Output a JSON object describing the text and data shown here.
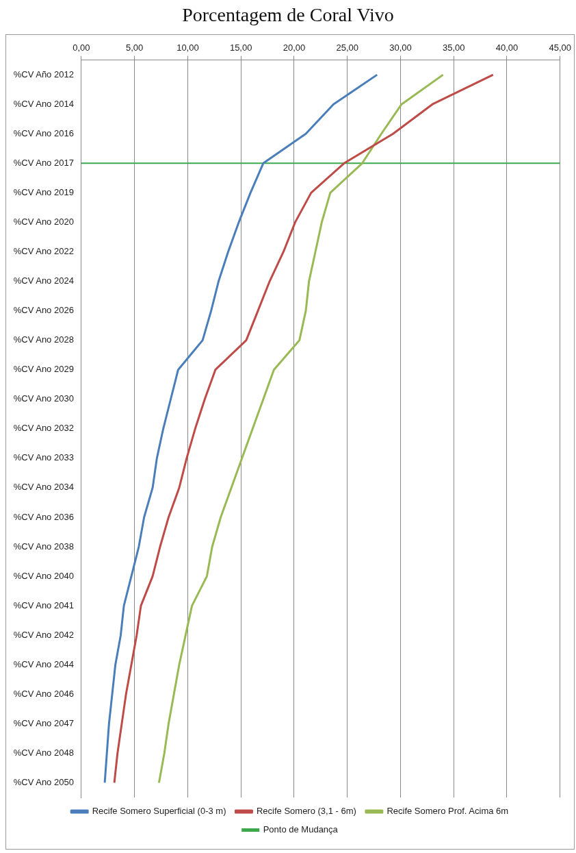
{
  "chart_data": {
    "type": "line",
    "title": "Porcentagem de Coral Vivo",
    "orientation": "horizontal",
    "categories": [
      "%CV Año 2012",
      "%CV Ano 2014",
      "%CV Ano 2016",
      "%CV Ano 2017",
      "%CV Ano 2019",
      "%CV Ano 2020",
      "%CV Ano 2022",
      "%CV Ano 2024",
      "%CV Ano 2026",
      "%CV Ano 2028",
      "%CV Ano 2029",
      "%CV Ano 2030",
      "%CV Ano 2032",
      "%CV Ano 2033",
      "%CV Ano 2034",
      "%CV Ano 2036",
      "%CV Ano 2038",
      "%CV Ano 2040",
      "%CV Ano 2041",
      "%CV Ano 2042",
      "%CV Ano 2044",
      "%CV Ano 2046",
      "%CV Ano 2047",
      "%CV Ano 2048",
      "%CV Ano 2050"
    ],
    "series": [
      {
        "name": "Recife Somero Superficial (0-3 m)",
        "color": "#4a7ebb",
        "values": [
          27.8,
          23.7,
          21.1,
          17.1,
          15.9,
          14.8,
          13.8,
          12.9,
          12.2,
          11.4,
          9.1,
          8.4,
          7.7,
          7.1,
          6.7,
          5.9,
          5.4,
          4.7,
          4.0,
          3.7,
          3.2,
          2.9,
          2.6,
          2.4,
          2.2
        ]
      },
      {
        "name": "Recife Somero (3,1 - 6m)",
        "color": "#be4b48",
        "values": [
          38.7,
          33.0,
          29.3,
          24.7,
          21.6,
          20.1,
          19.0,
          17.7,
          16.6,
          15.5,
          12.6,
          11.6,
          10.7,
          9.9,
          9.2,
          8.2,
          7.4,
          6.7,
          5.6,
          5.2,
          4.7,
          4.2,
          3.8,
          3.4,
          3.1
        ]
      },
      {
        "name": "Recife Somero Prof. Acima 6m",
        "color": "#98b954",
        "values": [
          34.0,
          30.1,
          28.2,
          26.4,
          23.4,
          22.6,
          22.0,
          21.4,
          21.1,
          20.5,
          18.1,
          17.1,
          16.1,
          15.1,
          14.1,
          13.1,
          12.3,
          11.8,
          10.4,
          9.8,
          9.2,
          8.7,
          8.2,
          7.8,
          7.3
        ]
      }
    ],
    "ref_lines": [
      {
        "axis": "y",
        "value": "%CV Ano 2017",
        "label": "Ponto de Mudança",
        "color": "#3ca84c"
      }
    ],
    "xlim": [
      0,
      45
    ],
    "xticks": [
      {
        "value": 0,
        "label": "0,00"
      },
      {
        "value": 5,
        "label": "5,00"
      },
      {
        "value": 10,
        "label": "10,00"
      },
      {
        "value": 15,
        "label": "15,00"
      },
      {
        "value": 20,
        "label": "20,00"
      },
      {
        "value": 25,
        "label": "25,00"
      },
      {
        "value": 30,
        "label": "30,00"
      },
      {
        "value": 35,
        "label": "35,00"
      },
      {
        "value": 40,
        "label": "40,00"
      },
      {
        "value": 45,
        "label": "45,00"
      }
    ],
    "grid": "x",
    "legend": "bottom",
    "marker": "none",
    "line_style": "solid"
  }
}
